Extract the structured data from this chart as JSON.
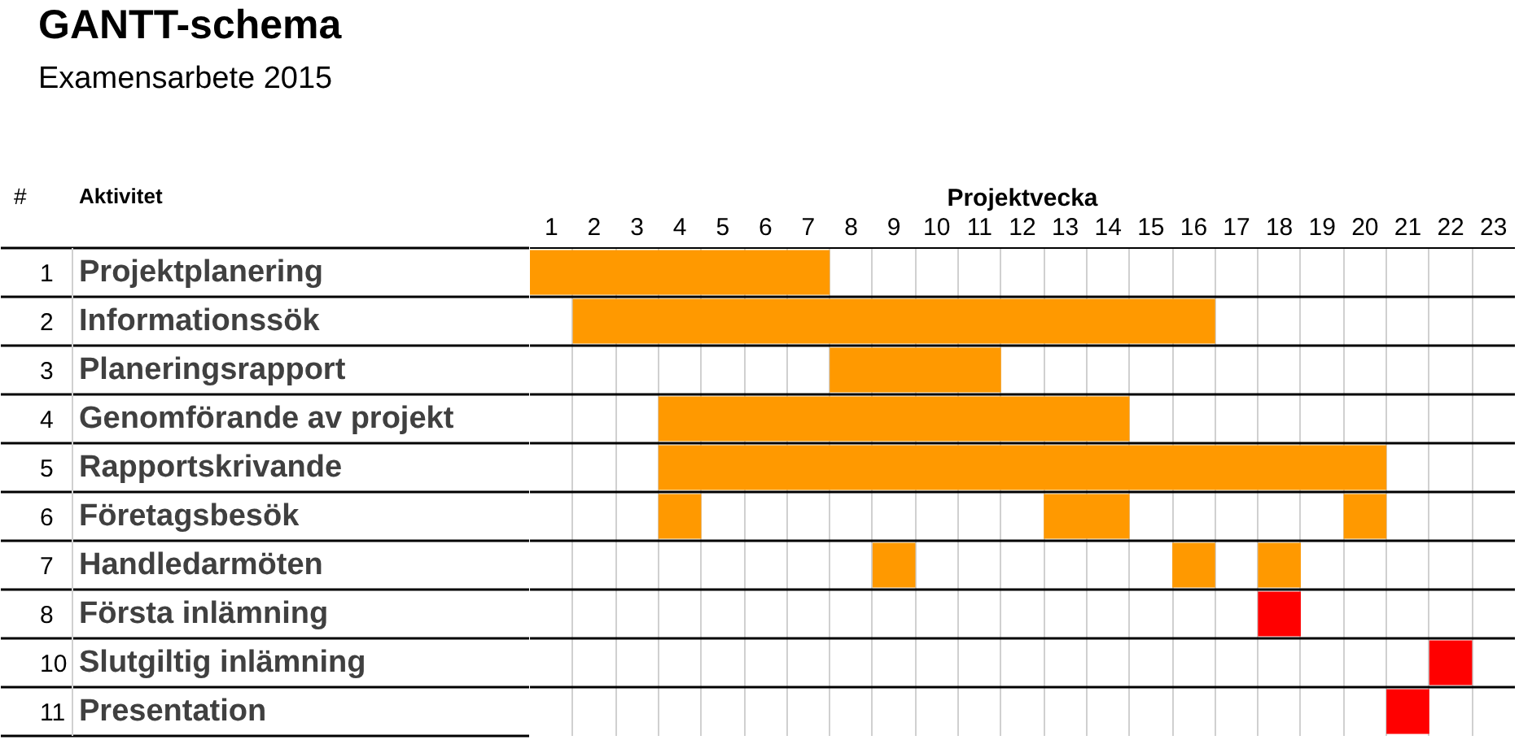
{
  "chart_data": {
    "type": "bar",
    "orientation": "horizontal",
    "title": "GANTT-schema",
    "subtitle": "Examensarbete 2015",
    "xlabel": "Projektvecka",
    "annotations": [
      "#",
      "Aktivitet"
    ],
    "categories": [
      "1 Projektplanering",
      "2 Informationssök",
      "3 Planeringsrapport",
      "4 Genomförande av projekt",
      "5 Rapportskrivande",
      "6 Företagsbesök",
      "7 Handledarmöten",
      "8 Första inlämning",
      "10 Slutgiltig inlämning",
      "11 Presentation"
    ],
    "series": [
      {
        "color": "#ff9900",
        "base": [
          0,
          1,
          7,
          3,
          3,
          3,
          8,
          null,
          null,
          null
        ],
        "values": [
          7,
          15,
          4,
          11,
          17,
          1,
          1,
          null,
          null,
          null
        ]
      },
      {
        "color": "#ff9900",
        "base": [
          null,
          null,
          null,
          null,
          null,
          12,
          15,
          null,
          null,
          null
        ],
        "values": [
          null,
          null,
          null,
          null,
          null,
          2,
          1,
          null,
          null,
          null
        ]
      },
      {
        "color": "#ff9900",
        "base": [
          null,
          null,
          null,
          null,
          null,
          19,
          17,
          null,
          null,
          null
        ],
        "values": [
          null,
          null,
          null,
          null,
          null,
          1,
          1,
          null,
          null,
          null
        ]
      },
      {
        "color": "#ff0000",
        "base": [
          null,
          null,
          null,
          null,
          null,
          null,
          null,
          17,
          21,
          20
        ],
        "values": [
          null,
          null,
          null,
          null,
          null,
          null,
          null,
          1,
          1,
          1
        ]
      }
    ],
    "xlim": [
      0,
      23
    ],
    "xticks": [
      {
        "value": 0.5,
        "label": "1"
      },
      {
        "value": 1.5,
        "label": "2"
      },
      {
        "value": 2.5,
        "label": "3"
      },
      {
        "value": 3.5,
        "label": "4"
      },
      {
        "value": 4.5,
        "label": "5"
      },
      {
        "value": 5.5,
        "label": "6"
      },
      {
        "value": 6.5,
        "label": "7"
      },
      {
        "value": 7.5,
        "label": "8"
      },
      {
        "value": 8.5,
        "label": "9"
      },
      {
        "value": 9.5,
        "label": "10"
      },
      {
        "value": 10.5,
        "label": "11"
      },
      {
        "value": 11.5,
        "label": "12"
      },
      {
        "value": 12.5,
        "label": "13"
      },
      {
        "value": 13.5,
        "label": "14"
      },
      {
        "value": 14.5,
        "label": "15"
      },
      {
        "value": 15.5,
        "label": "16"
      },
      {
        "value": 16.5,
        "label": "17"
      },
      {
        "value": 17.5,
        "label": "18"
      },
      {
        "value": 18.5,
        "label": "19"
      },
      {
        "value": 19.5,
        "label": "20"
      },
      {
        "value": 20.5,
        "label": "21"
      },
      {
        "value": 21.5,
        "label": "22"
      },
      {
        "value": 22.5,
        "label": "23"
      }
    ],
    "grid": true
  }
}
